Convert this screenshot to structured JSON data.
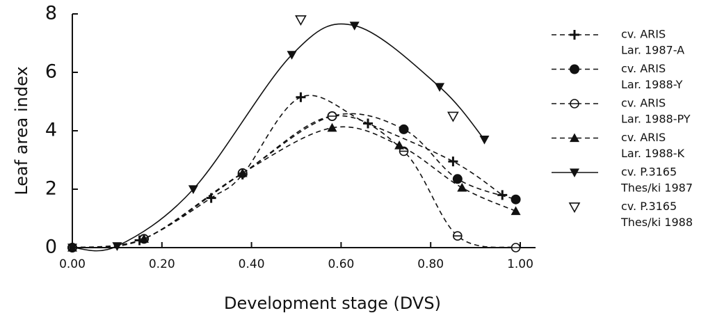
{
  "chart_data": {
    "type": "line",
    "x_label": "Development stage (DVS)",
    "y_label": "Leaf area index",
    "xlim": [
      0,
      1.03
    ],
    "ylim": [
      0,
      8
    ],
    "xticks": [
      {
        "value": 0,
        "label": "0.00"
      },
      {
        "value": 0.2,
        "label": "0.20"
      },
      {
        "value": 0.4,
        "label": "0.40"
      },
      {
        "value": 0.6,
        "label": "0.60"
      },
      {
        "value": 0.8,
        "label": "0.80"
      },
      {
        "value": 1,
        "label": "1.00"
      }
    ],
    "yticks": [
      0,
      2,
      4,
      6,
      8
    ],
    "series": [
      {
        "name": [
          "cv. ARIS",
          "Lar. 1987-A"
        ],
        "color": "#111111",
        "marker": "plus",
        "linestyle": "dashed",
        "x": [
          0,
          0.15,
          0.31,
          0.38,
          0.51,
          0.66,
          0.85,
          0.96
        ],
        "values": [
          0,
          0.25,
          1.7,
          2.5,
          5.15,
          4.25,
          2.95,
          1.8
        ]
      },
      {
        "name": [
          "cv. ARIS",
          "Lar. 1988-Y"
        ],
        "color": "#111111",
        "marker": "circle",
        "linestyle": "dashed",
        "x": [
          0,
          0.16,
          0.38,
          0.58,
          0.74,
          0.86,
          0.99
        ],
        "values": [
          0,
          0.3,
          2.55,
          4.5,
          4.05,
          2.35,
          1.65
        ]
      },
      {
        "name": [
          "cv. ARIS",
          "Lar. 1988-PY"
        ],
        "color": "#111111",
        "marker": "circle-open",
        "linestyle": "dashed",
        "x": [
          0,
          0.16,
          0.38,
          0.58,
          0.74,
          0.86,
          0.99
        ],
        "values": [
          0,
          0.3,
          2.55,
          4.5,
          3.3,
          0.4,
          0
        ]
      },
      {
        "name": [
          "cv. ARIS",
          "Lar. 1988-K"
        ],
        "color": "#111111",
        "marker": "triangle",
        "linestyle": "dashed",
        "x": [
          0,
          0.16,
          0.38,
          0.58,
          0.73,
          0.87,
          0.99
        ],
        "values": [
          0,
          0.3,
          2.55,
          4.1,
          3.5,
          2.05,
          1.25
        ]
      },
      {
        "name": [
          "cv. P.3165",
          "Thes/ki 1987"
        ],
        "color": "#111111",
        "marker": "triangle-down",
        "linestyle": "solid",
        "x": [
          0,
          0.1,
          0.27,
          0.49,
          0.63,
          0.82,
          0.92
        ],
        "values": [
          0,
          0.05,
          2.0,
          6.6,
          7.6,
          5.5,
          3.7
        ]
      },
      {
        "name": [
          "cv. P.3165",
          "Thes/ki 1988"
        ],
        "color": "#111111",
        "marker": "triangle-down-open",
        "linestyle": "none",
        "x": [
          0.51,
          0.85
        ],
        "values": [
          7.8,
          4.5
        ]
      }
    ]
  }
}
